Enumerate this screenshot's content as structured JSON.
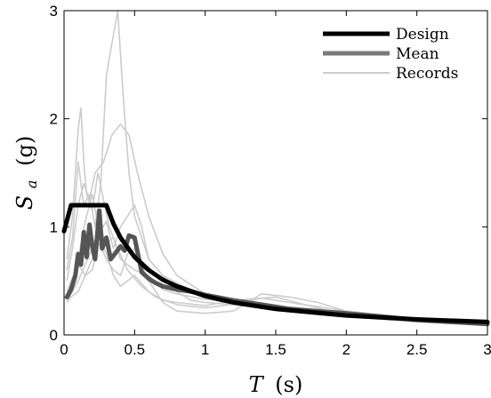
{
  "chart_data": {
    "type": "line",
    "xlabel_var": "T",
    "xlabel_unit": "(s)",
    "ylabel_var": "S",
    "ylabel_sub": "a",
    "ylabel_unit": "(g)",
    "xlim": [
      0,
      3
    ],
    "ylim": [
      0,
      3
    ],
    "xticks": [
      0,
      0.5,
      1,
      1.5,
      2,
      2.5,
      3
    ],
    "xtick_labels": [
      "0",
      "0.5",
      "1",
      "1.5",
      "2",
      "2.5",
      "3"
    ],
    "yticks": [
      0,
      1,
      2,
      3
    ],
    "ytick_labels": [
      "0",
      "1",
      "2",
      "3"
    ],
    "grid": false,
    "legend_position": "top-right",
    "colors": {
      "design": "#000000",
      "mean": "#7a7a7a",
      "records": "#cccccc",
      "mean_highlight": "#555555"
    },
    "series": [
      {
        "name": "Design",
        "role": "design",
        "x": [
          0.0,
          0.05,
          0.3,
          0.35,
          0.4,
          0.5,
          0.6,
          0.7,
          0.8,
          1.0,
          1.2,
          1.5,
          2.0,
          2.5,
          3.0
        ],
        "y": [
          0.96,
          1.2,
          1.2,
          1.03,
          0.9,
          0.72,
          0.6,
          0.51,
          0.45,
          0.36,
          0.3,
          0.24,
          0.18,
          0.144,
          0.12
        ]
      },
      {
        "name": "Mean",
        "role": "mean",
        "x": [
          0.02,
          0.05,
          0.08,
          0.1,
          0.12,
          0.14,
          0.16,
          0.18,
          0.2,
          0.22,
          0.25,
          0.27,
          0.3,
          0.33,
          0.36,
          0.4,
          0.43,
          0.46,
          0.5,
          0.55,
          0.6,
          0.65,
          0.7,
          0.8,
          0.9,
          1.0,
          1.2,
          1.4,
          1.6,
          1.8,
          2.0,
          2.5,
          3.0
        ],
        "y": [
          0.35,
          0.42,
          0.55,
          0.75,
          0.65,
          0.95,
          0.72,
          1.02,
          0.82,
          0.7,
          1.15,
          0.8,
          0.9,
          0.7,
          0.75,
          0.82,
          0.78,
          0.92,
          0.9,
          0.58,
          0.52,
          0.48,
          0.45,
          0.42,
          0.4,
          0.37,
          0.32,
          0.28,
          0.24,
          0.22,
          0.2,
          0.14,
          0.1
        ]
      },
      {
        "name": "Records",
        "role": "records",
        "x": [
          0.02,
          0.06,
          0.1,
          0.14,
          0.18,
          0.22,
          0.26,
          0.3,
          0.34,
          0.38,
          0.42,
          0.46,
          0.5,
          0.6,
          0.7,
          0.8,
          1.0,
          1.2,
          1.5,
          2.0,
          2.5,
          3.0
        ],
        "y": [
          0.6,
          0.9,
          1.6,
          1.2,
          1.3,
          1.0,
          1.4,
          2.4,
          2.7,
          3.0,
          2.2,
          1.5,
          1.1,
          0.7,
          0.55,
          0.48,
          0.35,
          0.3,
          0.25,
          0.18,
          0.13,
          0.1
        ]
      },
      {
        "x": [
          0.02,
          0.06,
          0.1,
          0.14,
          0.18,
          0.22,
          0.28,
          0.34,
          0.4,
          0.46,
          0.52,
          0.6,
          0.7,
          0.8,
          1.0,
          1.2,
          1.5,
          2.0,
          2.5,
          3.0
        ],
        "y": [
          0.5,
          0.8,
          1.2,
          1.4,
          1.25,
          1.5,
          1.6,
          1.85,
          1.95,
          1.85,
          1.5,
          1.1,
          0.75,
          0.55,
          0.38,
          0.32,
          0.27,
          0.2,
          0.14,
          0.1
        ]
      },
      {
        "x": [
          0.02,
          0.06,
          0.08,
          0.1,
          0.12,
          0.14,
          0.16,
          0.2,
          0.24,
          0.28,
          0.32,
          0.38,
          0.45,
          0.55,
          0.65,
          0.8,
          1.0,
          1.3,
          1.6,
          2.0,
          2.5,
          3.0
        ],
        "y": [
          0.7,
          1.1,
          1.5,
          1.9,
          2.1,
          1.6,
          1.3,
          1.15,
          1.5,
          1.25,
          1.0,
          0.8,
          0.6,
          0.45,
          0.35,
          0.28,
          0.25,
          0.3,
          0.22,
          0.17,
          0.12,
          0.09
        ]
      },
      {
        "x": [
          0.02,
          0.05,
          0.1,
          0.15,
          0.2,
          0.25,
          0.3,
          0.35,
          0.4,
          0.45,
          0.5,
          0.55,
          0.6,
          0.7,
          0.8,
          0.9,
          1.0,
          1.2,
          1.4,
          1.6,
          2.0,
          2.5,
          3.0
        ],
        "y": [
          0.35,
          0.45,
          0.7,
          1.05,
          1.3,
          0.95,
          1.05,
          0.8,
          1.0,
          1.1,
          1.2,
          1.0,
          0.7,
          0.55,
          0.4,
          0.32,
          0.3,
          0.28,
          0.34,
          0.3,
          0.22,
          0.15,
          0.1
        ]
      },
      {
        "x": [
          0.02,
          0.05,
          0.1,
          0.15,
          0.2,
          0.25,
          0.3,
          0.35,
          0.4,
          0.45,
          0.5,
          0.6,
          0.7,
          0.8,
          1.0,
          1.2,
          1.4,
          1.6,
          1.8,
          2.0,
          2.5,
          3.0
        ],
        "y": [
          0.3,
          0.35,
          0.4,
          0.55,
          0.6,
          0.85,
          0.7,
          0.6,
          0.55,
          0.75,
          0.8,
          0.5,
          0.3,
          0.22,
          0.2,
          0.22,
          0.38,
          0.35,
          0.3,
          0.22,
          0.15,
          0.12
        ]
      },
      {
        "x": [
          0.02,
          0.05,
          0.1,
          0.15,
          0.2,
          0.25,
          0.3,
          0.35,
          0.4,
          0.45,
          0.5,
          0.6,
          0.7,
          0.8,
          1.0,
          1.2,
          1.5,
          2.0,
          2.5,
          3.0
        ],
        "y": [
          0.4,
          0.5,
          0.65,
          0.55,
          0.7,
          0.9,
          0.75,
          0.55,
          0.45,
          0.5,
          0.55,
          0.4,
          0.32,
          0.3,
          0.27,
          0.32,
          0.35,
          0.18,
          0.12,
          0.1
        ]
      },
      {
        "x": [
          0.02,
          0.05,
          0.1,
          0.15,
          0.2,
          0.25,
          0.3,
          0.35,
          0.4,
          0.5,
          0.6,
          0.7,
          0.8,
          1.0,
          1.2,
          1.5,
          2.0,
          2.5,
          3.0
        ],
        "y": [
          0.3,
          0.38,
          0.5,
          0.65,
          0.8,
          1.0,
          0.85,
          0.9,
          0.7,
          0.6,
          0.55,
          0.42,
          0.38,
          0.33,
          0.3,
          0.26,
          0.2,
          0.15,
          0.12
        ]
      }
    ]
  }
}
